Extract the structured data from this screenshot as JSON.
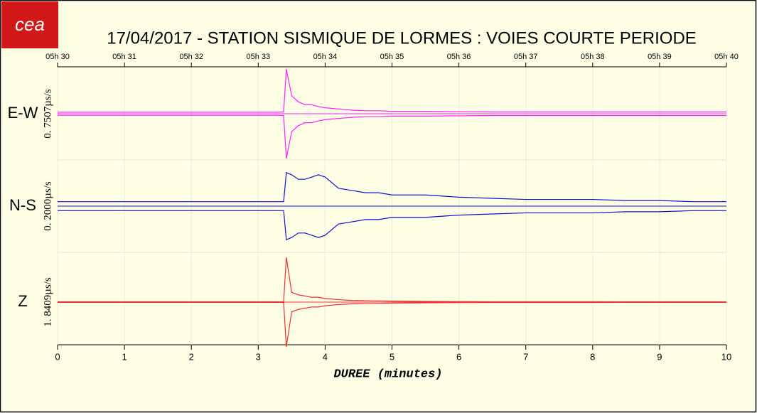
{
  "chart_data": {
    "type": "line",
    "logo_text": "cea",
    "title": "17/04/2017  -  STATION SISMIQUE DE LORMES : VOIES COURTE PERIODE",
    "xlabel": "DUREE (minutes)",
    "xlim": [
      0,
      10
    ],
    "xticks": [
      0,
      1,
      2,
      3,
      4,
      5,
      6,
      7,
      8,
      9,
      10
    ],
    "x2ticks": [
      {
        "value": 0,
        "label": "05h 30"
      },
      {
        "value": 1,
        "label": "05h 31"
      },
      {
        "value": 2,
        "label": "05h 32"
      },
      {
        "value": 3,
        "label": "05h 33"
      },
      {
        "value": 4,
        "label": "05h 34"
      },
      {
        "value": 5,
        "label": "05h 35"
      },
      {
        "value": 6,
        "label": "05h 36"
      },
      {
        "value": 7,
        "label": "05h 37"
      },
      {
        "value": 8,
        "label": "05h 38"
      },
      {
        "value": 9,
        "label": "05h 39"
      },
      {
        "value": 10,
        "label": "05h 40"
      }
    ],
    "grid": true,
    "x": [
      0,
      0.5,
      1,
      1.5,
      2,
      2.5,
      3,
      3.3,
      3.38,
      3.42,
      3.5,
      3.6,
      3.7,
      3.8,
      3.9,
      4,
      4.2,
      4.4,
      4.6,
      4.8,
      5,
      5.5,
      6,
      6.5,
      7,
      7.5,
      8,
      8.5,
      9,
      9.5,
      10
    ],
    "series": [
      {
        "name": "E-W",
        "scale_label": "0. 7507µs/s",
        "color": "#ff20ff",
        "ylim": [
          -0.7507,
          0.7507
        ],
        "values": [
          0.025,
          0.025,
          0.025,
          0.025,
          0.025,
          0.025,
          0.025,
          0.025,
          0.03,
          0.75,
          0.3,
          0.2,
          0.15,
          0.15,
          0.12,
          0.1,
          0.08,
          0.06,
          0.05,
          0.05,
          0.04,
          0.04,
          0.035,
          0.03,
          0.03,
          0.03,
          0.03,
          0.03,
          0.03,
          0.03,
          0.03
        ]
      },
      {
        "name": "N-S",
        "scale_label": "0. 2000µs/s",
        "color": "#1010d0",
        "ylim": [
          -0.2,
          0.2
        ],
        "values": [
          0.02,
          0.02,
          0.02,
          0.02,
          0.02,
          0.02,
          0.02,
          0.02,
          0.02,
          0.15,
          0.14,
          0.12,
          0.12,
          0.13,
          0.14,
          0.13,
          0.08,
          0.07,
          0.06,
          0.06,
          0.05,
          0.05,
          0.04,
          0.035,
          0.03,
          0.03,
          0.03,
          0.025,
          0.025,
          0.02,
          0.02
        ]
      },
      {
        "name": "Z",
        "scale_label": "1. 8409µs/s",
        "color": "#f03030",
        "ylim": [
          -1.8409,
          1.8409
        ],
        "values": [
          0.01,
          0.01,
          0.01,
          0.01,
          0.01,
          0.01,
          0.01,
          0.01,
          0.01,
          1.84,
          0.4,
          0.3,
          0.25,
          0.2,
          0.2,
          0.15,
          0.1,
          0.07,
          0.06,
          0.05,
          0.04,
          0.03,
          0.02,
          0.015,
          0.015,
          0.015,
          0.015,
          0.01,
          0.01,
          0.01,
          0.01
        ]
      }
    ]
  }
}
